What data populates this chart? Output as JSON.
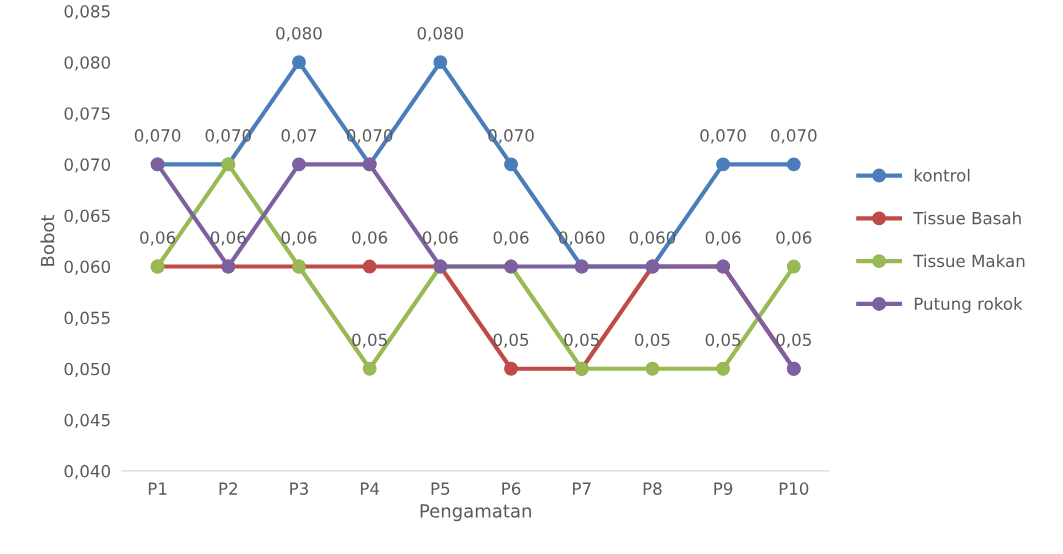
{
  "chart_data": {
    "type": "line",
    "xlabel": "Pengamatan",
    "ylabel": "Bobot",
    "categories": [
      "P1",
      "P2",
      "P3",
      "P4",
      "P5",
      "P6",
      "P7",
      "P8",
      "P9",
      "P10"
    ],
    "series": [
      {
        "name": "kontrol",
        "color": "#4a7ebb",
        "values": [
          0.07,
          0.07,
          0.08,
          0.07,
          0.08,
          0.07,
          0.06,
          0.06,
          0.07,
          0.07
        ],
        "value_labels": [
          "0,070",
          "0,070",
          "0,080",
          "0,070",
          "0,080",
          "0,070",
          "0,060",
          "0,060",
          "0,070",
          "0,070"
        ]
      },
      {
        "name": "Tissue Basah",
        "color": "#be4b48",
        "values": [
          0.06,
          0.06,
          0.06,
          0.06,
          0.06,
          0.05,
          0.05,
          0.06,
          0.06,
          0.05
        ],
        "value_labels": [
          "0,06",
          "0,06",
          "0,06",
          "0,06",
          "0,06",
          "0,05",
          "0,05",
          null,
          "0,06",
          "0,05"
        ]
      },
      {
        "name": "Tissue Makan",
        "color": "#98b954",
        "values": [
          0.06,
          0.07,
          0.06,
          0.05,
          0.06,
          0.06,
          0.05,
          0.05,
          0.05,
          0.06
        ],
        "value_labels": [
          null,
          null,
          null,
          "0,05",
          null,
          "0,06",
          null,
          "0,05",
          "0,05",
          "0,06"
        ]
      },
      {
        "name": "Putung rokok",
        "color": "#7d60a0",
        "values": [
          0.07,
          0.06,
          0.07,
          0.07,
          0.06,
          0.06,
          0.06,
          0.06,
          0.06,
          0.05
        ],
        "value_labels": [
          null,
          null,
          "0,07",
          null,
          null,
          null,
          null,
          null,
          null,
          null
        ]
      }
    ],
    "ylim": [
      0.04,
      0.085
    ],
    "yticks": [
      {
        "value": 0.04,
        "label": "0,040"
      },
      {
        "value": 0.045,
        "label": "0,045"
      },
      {
        "value": 0.05,
        "label": "0,050"
      },
      {
        "value": 0.055,
        "label": "0,055"
      },
      {
        "value": 0.06,
        "label": "0,060"
      },
      {
        "value": 0.065,
        "label": "0,065"
      },
      {
        "value": 0.07,
        "label": "0,070"
      },
      {
        "value": 0.075,
        "label": "0,075"
      },
      {
        "value": 0.08,
        "label": "0,080"
      },
      {
        "value": 0.085,
        "label": "0,085"
      }
    ],
    "legend": "right",
    "marker": "circle",
    "line_style": "solid",
    "grid": false
  }
}
